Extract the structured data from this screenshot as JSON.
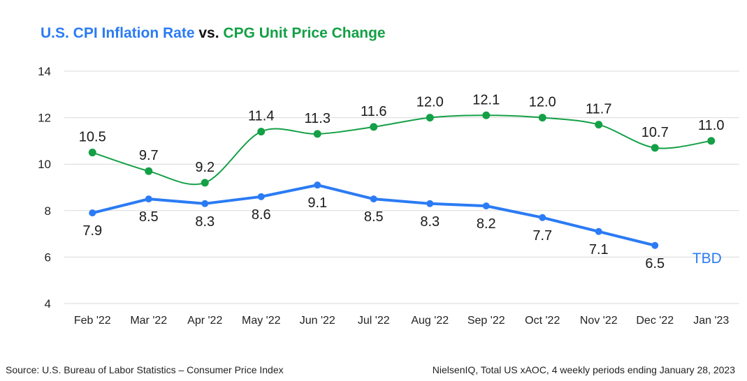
{
  "title": {
    "part1": "U.S. CPI Inflation Rate",
    "part2": " vs. ",
    "part3": "CPG Unit Price Change"
  },
  "footer": {
    "left": "Source: U.S. Bureau of Labor Statistics – Consumer Price Index",
    "right": "NielsenIQ, Total US xAOC,  4 weekly periods ending January 28,  2023"
  },
  "colors": {
    "cpi": "#2b7bf4",
    "cpg": "#14a046",
    "grid": "#d9d9d9",
    "text": "#222222"
  },
  "chart_data": {
    "type": "line",
    "categories": [
      "Feb '22",
      "Mar '22",
      "Apr '22",
      "May '22",
      "Jun '22",
      "Jul '22",
      "Aug '22",
      "Sep '22",
      "Oct '22",
      "Nov '22",
      "Dec '22",
      "Jan '23"
    ],
    "ylim": [
      4,
      14
    ],
    "yticks": [
      4,
      6,
      8,
      10,
      12,
      14
    ],
    "grid": true,
    "series": [
      {
        "key": "cpg",
        "color": "#14a046",
        "values": [
          10.5,
          9.7,
          9.2,
          11.4,
          11.3,
          11.6,
          12.0,
          12.1,
          12.0,
          11.7,
          10.7,
          11.0
        ],
        "labels": [
          "10.5",
          "9.7",
          "9.2",
          "11.4",
          "11.3",
          "11.6",
          "12.0",
          "12.1",
          "12.0",
          "11.7",
          "10.7",
          "11.0"
        ],
        "label_position": "above"
      },
      {
        "key": "cpi",
        "color": "#2b7bf4",
        "values": [
          7.9,
          8.5,
          8.3,
          8.6,
          9.1,
          8.5,
          8.3,
          8.2,
          7.7,
          7.1,
          6.5,
          null
        ],
        "labels": [
          "7.9",
          "8.5",
          "8.3",
          "8.6",
          "9.1",
          "8.5",
          "8.3",
          "8.2",
          "7.7",
          "7.1",
          "6.5",
          ""
        ],
        "label_position": "below",
        "annotation": "TBD"
      }
    ]
  }
}
